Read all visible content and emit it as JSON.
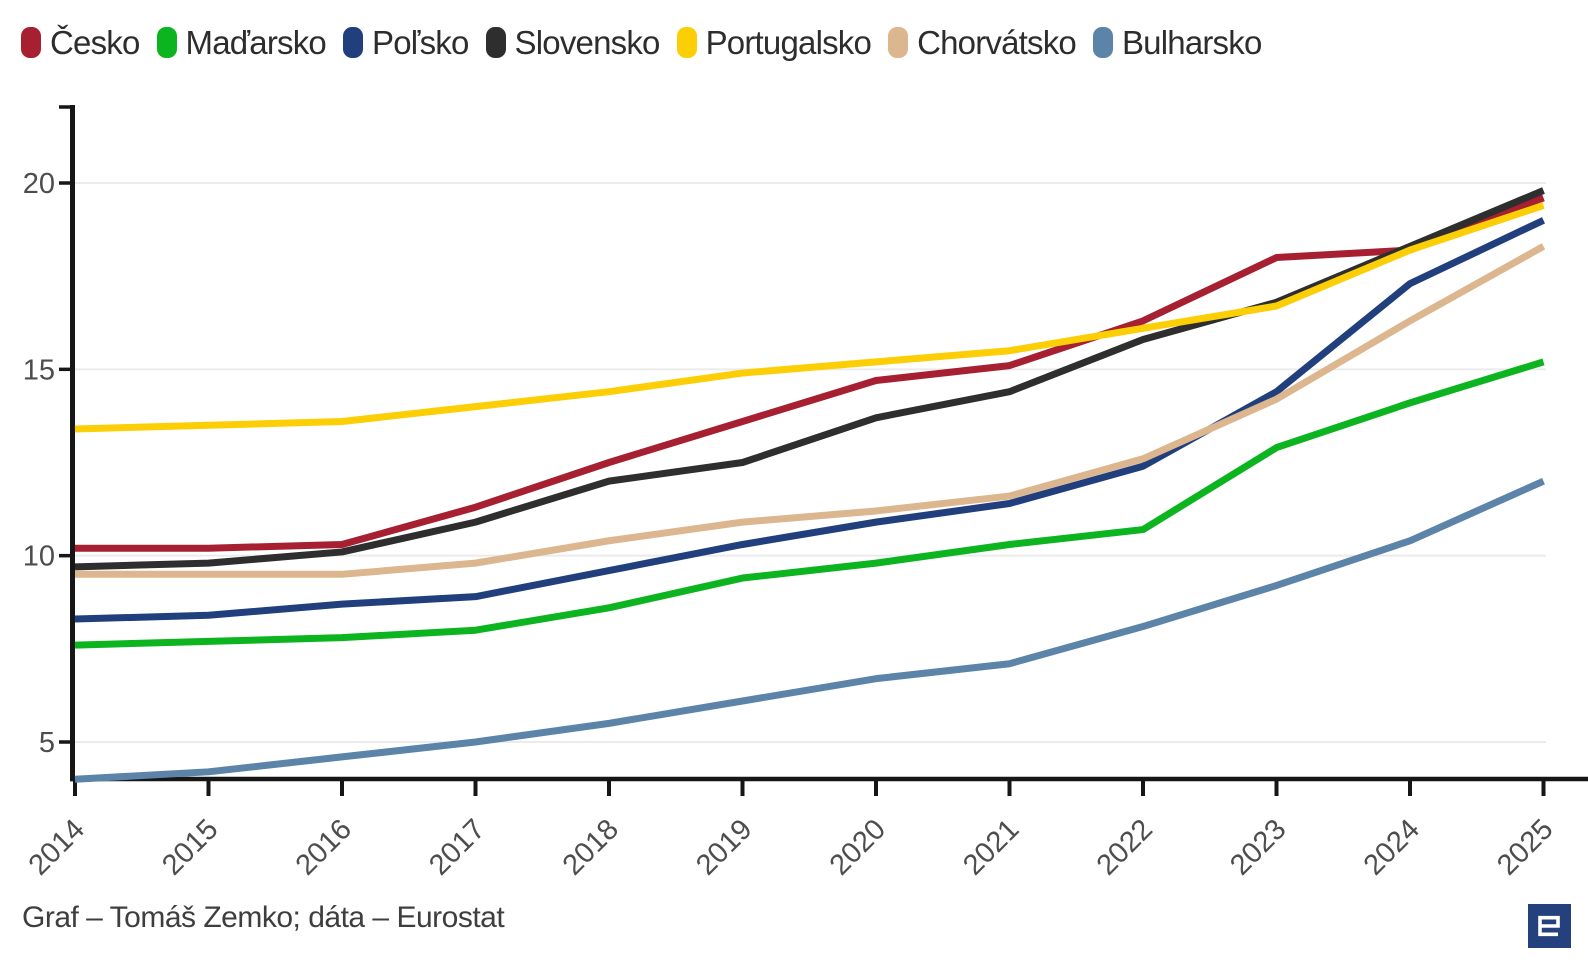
{
  "page": {
    "background": "#ffffff",
    "axis_color": "#161616",
    "grid_color": "#ebebeb",
    "tick_label_color": "#4d4d4d"
  },
  "chart_data": {
    "type": "line",
    "title": "",
    "xlabel": "",
    "ylabel": "",
    "x": [
      "2014",
      "2015",
      "2016",
      "2017",
      "2018",
      "2019",
      "2020",
      "2021",
      "2022",
      "2023",
      "2024",
      "2025"
    ],
    "series": [
      {
        "name": "Česko",
        "color": "#a62031",
        "values": [
          10.2,
          10.2,
          10.3,
          11.3,
          12.5,
          13.6,
          14.7,
          15.1,
          16.3,
          18.0,
          18.2,
          19.6
        ]
      },
      {
        "name": "Maďarsko",
        "color": "#0cb51f",
        "values": [
          7.6,
          7.7,
          7.8,
          8.0,
          8.6,
          9.4,
          9.8,
          10.3,
          10.7,
          12.9,
          14.1,
          15.2
        ]
      },
      {
        "name": "Poľsko",
        "color": "#223f7d",
        "values": [
          8.3,
          8.4,
          8.7,
          8.9,
          9.6,
          10.3,
          10.9,
          11.4,
          12.4,
          14.4,
          17.3,
          19.0
        ]
      },
      {
        "name": "Slovensko",
        "color": "#2e2e2e",
        "values": [
          9.7,
          9.8,
          10.1,
          10.9,
          12.0,
          12.5,
          13.7,
          14.4,
          15.8,
          16.8,
          18.3,
          19.8
        ]
      },
      {
        "name": "Portugalsko",
        "color": "#fcce05",
        "values": [
          13.4,
          13.5,
          13.6,
          14.0,
          14.4,
          14.9,
          15.2,
          15.5,
          16.1,
          16.7,
          18.2,
          19.4
        ]
      },
      {
        "name": "Chorvátsko",
        "color": "#dcb68e",
        "values": [
          9.5,
          9.5,
          9.5,
          9.8,
          10.4,
          10.9,
          11.2,
          11.6,
          12.6,
          14.2,
          16.3,
          18.3
        ]
      },
      {
        "name": "Bulharsko",
        "color": "#5c84a9",
        "values": [
          4.0,
          4.2,
          4.6,
          5.0,
          5.5,
          6.1,
          6.7,
          7.1,
          8.1,
          9.2,
          10.4,
          12.0
        ]
      }
    ],
    "yticks": [
      5,
      10,
      15,
      20
    ],
    "ylim": [
      4.0,
      22.1
    ],
    "grid": "horizontal",
    "legend_position": "top-left",
    "line_width": 7
  },
  "footer": {
    "credit": "Graf – Tomáš Zemko; dáta – Eurostat"
  },
  "logo": {
    "icon": "publisher-e-logo",
    "color": "#24417e",
    "glyph_color": "#ffffff"
  }
}
